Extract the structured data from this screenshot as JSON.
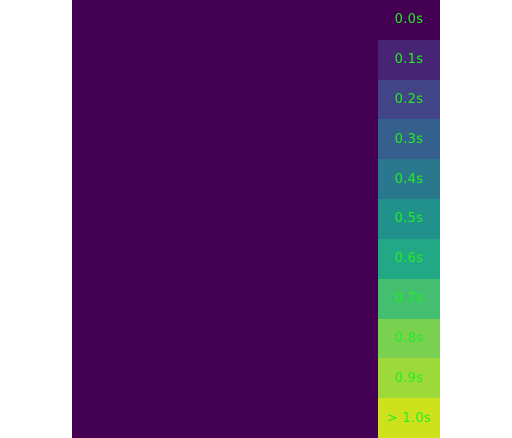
{
  "canvas": {
    "background": "#440154"
  },
  "legend": {
    "label_color": "#22ee22",
    "items": [
      {
        "label": "0.0s",
        "color": "#440154"
      },
      {
        "label": "0.1s",
        "color": "#482475"
      },
      {
        "label": "0.2s",
        "color": "#414487"
      },
      {
        "label": "0.3s",
        "color": "#355f8d"
      },
      {
        "label": "0.4s",
        "color": "#2a788e"
      },
      {
        "label": "0.5s",
        "color": "#21918c"
      },
      {
        "label": "0.6s",
        "color": "#22a884"
      },
      {
        "label": "0.7s",
        "color": "#44bf70"
      },
      {
        "label": "0.8s",
        "color": "#7ad151"
      },
      {
        "label": "0.9s",
        "color": "#9ed93a"
      },
      {
        "label": "> 1.0s",
        "color": "#cde11d"
      }
    ]
  }
}
